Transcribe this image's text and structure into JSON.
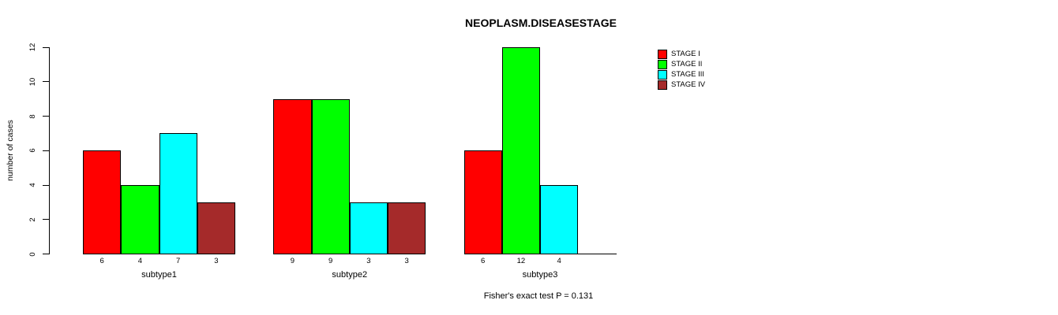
{
  "chart_data": {
    "type": "bar",
    "title": "NEOPLASM.DISEASESTAGE",
    "xlabel": "",
    "ylabel": "number of cases",
    "ylim": [
      0,
      12
    ],
    "yticks": [
      0,
      2,
      4,
      6,
      8,
      10,
      12
    ],
    "grid": false,
    "legend_position": "top-right",
    "bar_value_labels_shown": true,
    "categories": [
      "subtype1",
      "subtype2",
      "subtype3"
    ],
    "series": [
      {
        "name": "STAGE I",
        "color": "#FF0000",
        "values": [
          6,
          9,
          6
        ]
      },
      {
        "name": "STAGE II",
        "color": "#00FF00",
        "values": [
          4,
          9,
          12
        ]
      },
      {
        "name": "STAGE III",
        "color": "#00FFFF",
        "values": [
          7,
          3,
          4
        ]
      },
      {
        "name": "STAGE IV",
        "color": "#A52A2A",
        "values": [
          3,
          3,
          0
        ]
      }
    ],
    "annotation": "Fisher's exact test P = 0.131",
    "axis_color": "#000000",
    "background_color": "#FFFFFF"
  }
}
